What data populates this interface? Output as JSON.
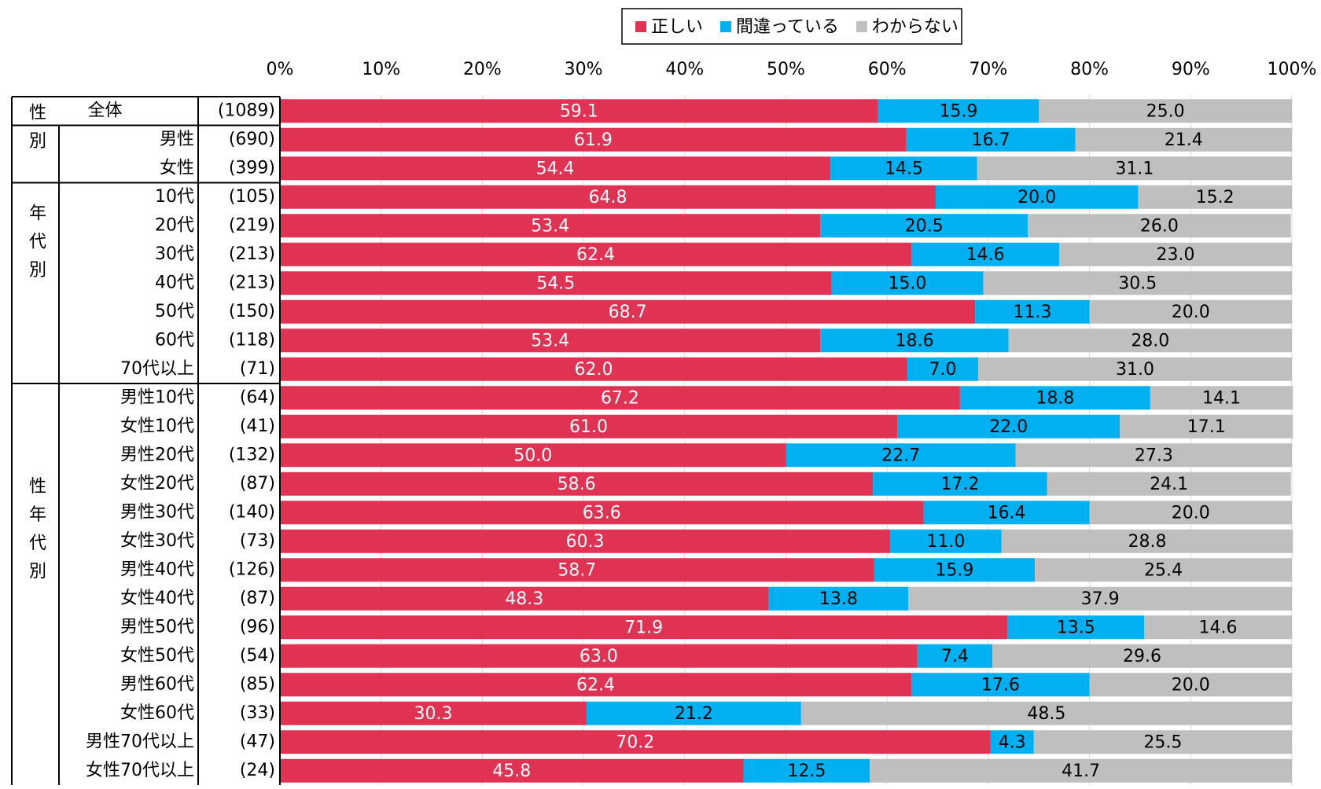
{
  "chart_data": {
    "type": "stacked-bar",
    "categories": [
      "全体",
      "男性",
      "女性",
      "10代",
      "20代",
      "30代",
      "40代",
      "50代",
      "60代",
      "70代以上",
      "男性10代",
      "女性10代",
      "男性20代",
      "女性20代",
      "男性30代",
      "女性30代",
      "男性40代",
      "女性40代",
      "男性50代",
      "女性50代",
      "男性60代",
      "女性60代",
      "男性70代以上",
      "女性70代以上"
    ],
    "sample_sizes": [
      "(1089)",
      "(690)",
      "(399)",
      "(105)",
      "(219)",
      "(213)",
      "(213)",
      "(150)",
      "(118)",
      "(71)",
      "(64)",
      "(41)",
      "(132)",
      "(87)",
      "(140)",
      "(73)",
      "(126)",
      "(87)",
      "(96)",
      "(54)",
      "(85)",
      "(33)",
      "(47)",
      "(24)"
    ],
    "groups": [
      {
        "label": "性別",
        "rows": [
          1,
          2
        ]
      },
      {
        "label": "年代別",
        "rows": [
          3,
          9
        ]
      },
      {
        "label": "性年代別",
        "rows": [
          10,
          23
        ]
      }
    ],
    "series": [
      {
        "name": "正しい",
        "color": "#e03353",
        "values": [
          59.1,
          61.9,
          54.4,
          64.8,
          53.4,
          62.4,
          54.5,
          68.7,
          53.4,
          62.0,
          67.2,
          61.0,
          50.0,
          58.6,
          63.6,
          60.3,
          58.7,
          48.3,
          71.9,
          63.0,
          62.4,
          30.3,
          70.2,
          45.8
        ],
        "value_labels": [
          "59.1",
          "61.9",
          "54.4",
          "64.8",
          "53.4",
          "62.4",
          "54.5",
          "68.7",
          "53.4",
          "62.0",
          "67.2",
          "61.0",
          "50.0",
          "58.6",
          "63.6",
          "60.3",
          "58.7",
          "48.3",
          "71.9",
          "63.0",
          "62.4",
          "30.3",
          "70.2",
          "45.8"
        ]
      },
      {
        "name": "間違っている",
        "color": "#00b0f0",
        "values": [
          15.9,
          16.7,
          14.5,
          20.0,
          20.5,
          14.6,
          15.0,
          11.3,
          18.6,
          7.0,
          18.8,
          22.0,
          22.7,
          17.2,
          16.4,
          11.0,
          15.9,
          13.8,
          13.5,
          7.4,
          17.6,
          21.2,
          4.3,
          12.5
        ],
        "value_labels": [
          "15.9",
          "16.7",
          "14.5",
          "20.0",
          "20.5",
          "14.6",
          "15.0",
          "11.3",
          "18.6",
          "7.0",
          "18.8",
          "22.0",
          "22.7",
          "17.2",
          "16.4",
          "11.0",
          "15.9",
          "13.8",
          "13.5",
          "7.4",
          "17.6",
          "21.2",
          "4.3",
          "12.5"
        ]
      },
      {
        "name": "わからない",
        "color": "#bfbfbf",
        "values": [
          25.0,
          21.4,
          31.1,
          15.2,
          26.0,
          23.0,
          30.5,
          20.0,
          28.0,
          31.0,
          14.1,
          17.1,
          27.3,
          24.1,
          20.0,
          28.8,
          25.4,
          37.9,
          14.6,
          29.6,
          20.0,
          48.5,
          25.5,
          41.7
        ],
        "value_labels": [
          "25.0",
          "21.4",
          "31.1",
          "15.2",
          "26.0",
          "23.0",
          "30.5",
          "20.0",
          "28.0",
          "31.0",
          "14.1",
          "17.1",
          "27.3",
          "24.1",
          "20.0",
          "28.8",
          "25.4",
          "37.9",
          "14.6",
          "29.6",
          "20.0",
          "48.5",
          "25.5",
          "41.7"
        ]
      }
    ],
    "xlim": [
      0,
      100
    ],
    "xticks": [
      {
        "value": 0,
        "label": "0%"
      },
      {
        "value": 10,
        "label": "10%"
      },
      {
        "value": 20,
        "label": "20%"
      },
      {
        "value": 30,
        "label": "30%"
      },
      {
        "value": 40,
        "label": "40%"
      },
      {
        "value": 50,
        "label": "50%"
      },
      {
        "value": 60,
        "label": "60%"
      },
      {
        "value": 70,
        "label": "70%"
      },
      {
        "value": 80,
        "label": "80%"
      },
      {
        "value": 90,
        "label": "90%"
      },
      {
        "value": 100,
        "label": "100%"
      }
    ],
    "grid": true,
    "legend": "top"
  }
}
